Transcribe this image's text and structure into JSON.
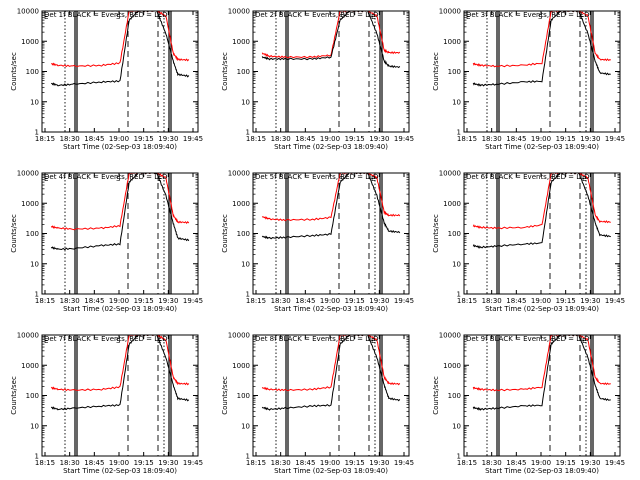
{
  "figure": {
    "xlabel": "Start Time (02-Sep-03 18:09:40)",
    "ylabel": "Counts/sec",
    "xticks": [
      "18:15",
      "18:30",
      "18:45",
      "19:00",
      "19:15",
      "19:30",
      "19:45"
    ],
    "yticks": [
      "1",
      "10",
      "100",
      "1000",
      "10000"
    ],
    "colors": {
      "events": "#000000",
      "lld": "#ff0000"
    }
  },
  "chart_data": [
    {
      "type": "line",
      "title": "Det 1f BLACK = Events, RED = LLD",
      "markers": [
        "E",
        "S",
        "E"
      ],
      "xlabel": "Start Time (02-Sep-03 18:09:40)",
      "ylabel": "Counts/sec",
      "xlim": [
        18.1,
        19.8
      ],
      "ylim": [
        1,
        10000
      ],
      "yscale": "log",
      "series": [
        {
          "name": "Events",
          "x": [
            18.2,
            18.28,
            18.45,
            18.75,
            18.95,
            19.05,
            19.15,
            19.35,
            19.45,
            19.53,
            19.58,
            19.7
          ],
          "y": [
            40,
            35,
            38,
            45,
            48,
            5000,
            10000,
            10000,
            1800,
            220,
            80,
            70
          ]
        },
        {
          "name": "LLD",
          "x": [
            18.2,
            18.28,
            18.45,
            18.75,
            18.95,
            19.05,
            19.15,
            19.35,
            19.45,
            19.53,
            19.58,
            19.7
          ],
          "y": [
            180,
            160,
            150,
            160,
            190,
            10000,
            10000,
            10000,
            7000,
            400,
            250,
            240
          ]
        }
      ]
    },
    {
      "type": "line",
      "title": "Det 2f BLACK = Events, RED = LLD",
      "markers": [
        "S",
        "E"
      ],
      "xlabel": "Start Time (02-Sep-03 18:09:40)",
      "ylabel": "Counts/sec",
      "xlim": [
        18.1,
        19.8
      ],
      "ylim": [
        1,
        10000
      ],
      "yscale": "log",
      "series": [
        {
          "name": "Events",
          "x": [
            18.2,
            18.28,
            18.45,
            18.75,
            18.95,
            19.05,
            19.15,
            19.35,
            19.45,
            19.53,
            19.58,
            19.7
          ],
          "y": [
            300,
            260,
            260,
            260,
            300,
            5000,
            10000,
            10000,
            1800,
            220,
            150,
            140
          ]
        },
        {
          "name": "LLD",
          "x": [
            18.2,
            18.28,
            18.45,
            18.75,
            18.95,
            19.05,
            19.15,
            19.35,
            19.45,
            19.53,
            19.58,
            19.7
          ],
          "y": [
            400,
            320,
            300,
            300,
            350,
            10000,
            10000,
            10000,
            7000,
            500,
            420,
            420
          ]
        }
      ]
    },
    {
      "type": "line",
      "title": "Det 3f BLACK = Events, RED = LLD",
      "markers": [
        "E",
        "S",
        "E"
      ],
      "xlabel": "Start Time (02-Sep-03 18:09:40)",
      "ylabel": "Counts/sec",
      "xlim": [
        18.1,
        19.8
      ],
      "ylim": [
        1,
        10000
      ],
      "yscale": "log",
      "series": [
        {
          "name": "Events",
          "x": [
            18.2,
            18.28,
            18.45,
            18.75,
            18.95,
            19.05,
            19.15,
            19.35,
            19.45,
            19.53,
            19.58,
            19.7
          ],
          "y": [
            40,
            35,
            38,
            45,
            48,
            5000,
            10000,
            10000,
            1800,
            220,
            90,
            80
          ]
        },
        {
          "name": "LLD",
          "x": [
            18.2,
            18.28,
            18.45,
            18.75,
            18.95,
            19.05,
            19.15,
            19.35,
            19.45,
            19.53,
            19.58,
            19.7
          ],
          "y": [
            180,
            160,
            150,
            160,
            190,
            10000,
            10000,
            10000,
            7000,
            400,
            250,
            240
          ]
        }
      ]
    },
    {
      "type": "line",
      "title": "Det 4f BLACK = Events, RED = LLD",
      "markers": [
        "E",
        "S",
        "E"
      ],
      "xlabel": "Start Time (02-Sep-03 18:09:40)",
      "ylabel": "Counts/sec",
      "xlim": [
        18.1,
        19.8
      ],
      "ylim": [
        1,
        10000
      ],
      "yscale": "log",
      "series": [
        {
          "name": "Events",
          "x": [
            18.2,
            18.28,
            18.45,
            18.75,
            18.95,
            19.05,
            19.15,
            19.35,
            19.45,
            19.53,
            19.58,
            19.7
          ],
          "y": [
            35,
            30,
            32,
            40,
            45,
            5000,
            10000,
            10000,
            1800,
            220,
            70,
            60
          ]
        },
        {
          "name": "LLD",
          "x": [
            18.2,
            18.28,
            18.45,
            18.75,
            18.95,
            19.05,
            19.15,
            19.35,
            19.45,
            19.53,
            19.58,
            19.7
          ],
          "y": [
            170,
            150,
            140,
            150,
            180,
            10000,
            10000,
            10000,
            7000,
            400,
            240,
            230
          ]
        }
      ]
    },
    {
      "type": "line",
      "title": "Det 5f BLACK = Events, RED = LLD",
      "markers": [
        "S",
        "E"
      ],
      "xlabel": "Start Time (02-Sep-03 18:09:40)",
      "ylabel": "Counts/sec",
      "xlim": [
        18.1,
        19.8
      ],
      "ylim": [
        1,
        10000
      ],
      "yscale": "log",
      "series": [
        {
          "name": "Events",
          "x": [
            18.2,
            18.28,
            18.45,
            18.75,
            18.95,
            19.05,
            19.15,
            19.35,
            19.45,
            19.53,
            19.58,
            19.7
          ],
          "y": [
            80,
            70,
            75,
            85,
            95,
            5000,
            10000,
            10000,
            1800,
            220,
            120,
            110
          ]
        },
        {
          "name": "LLD",
          "x": [
            18.2,
            18.28,
            18.45,
            18.75,
            18.95,
            19.05,
            19.15,
            19.35,
            19.45,
            19.53,
            19.58,
            19.7
          ],
          "y": [
            360,
            300,
            280,
            290,
            340,
            10000,
            10000,
            10000,
            7000,
            500,
            400,
            400
          ]
        }
      ]
    },
    {
      "type": "line",
      "title": "Det 6f BLACK = Events, RED = LLD",
      "markers": [
        "S",
        "E"
      ],
      "xlabel": "Start Time (02-Sep-03 18:09:40)",
      "ylabel": "Counts/sec",
      "xlim": [
        18.1,
        19.8
      ],
      "ylim": [
        1,
        10000
      ],
      "yscale": "log",
      "series": [
        {
          "name": "Events",
          "x": [
            18.2,
            18.28,
            18.45,
            18.75,
            18.95,
            19.05,
            19.15,
            19.35,
            19.45,
            19.53,
            19.58,
            19.7
          ],
          "y": [
            40,
            35,
            38,
            45,
            48,
            5000,
            10000,
            10000,
            1800,
            220,
            90,
            80
          ]
        },
        {
          "name": "LLD",
          "x": [
            18.2,
            18.28,
            18.45,
            18.75,
            18.95,
            19.05,
            19.15,
            19.35,
            19.45,
            19.53,
            19.58,
            19.7
          ],
          "y": [
            180,
            160,
            150,
            160,
            190,
            10000,
            10000,
            10000,
            7000,
            400,
            250,
            240
          ]
        }
      ]
    },
    {
      "type": "line",
      "title": "Det 7f BLACK = Events, RED = LLD",
      "markers": [
        "E",
        "S",
        "E"
      ],
      "xlabel": "Start Time (02-Sep-03 18:09:40)",
      "ylabel": "Counts/sec",
      "xlim": [
        18.1,
        19.8
      ],
      "ylim": [
        1,
        10000
      ],
      "yscale": "log",
      "series": [
        {
          "name": "Events",
          "x": [
            18.2,
            18.28,
            18.45,
            18.75,
            18.95,
            19.05,
            19.15,
            19.35,
            19.45,
            19.53,
            19.58,
            19.7
          ],
          "y": [
            40,
            35,
            38,
            45,
            48,
            5000,
            10000,
            10000,
            1800,
            220,
            80,
            70
          ]
        },
        {
          "name": "LLD",
          "x": [
            18.2,
            18.28,
            18.45,
            18.75,
            18.95,
            19.05,
            19.15,
            19.35,
            19.45,
            19.53,
            19.58,
            19.7
          ],
          "y": [
            180,
            160,
            150,
            160,
            190,
            10000,
            10000,
            10000,
            7000,
            400,
            250,
            240
          ]
        }
      ]
    },
    {
      "type": "line",
      "title": "Det 8f BLACK = Events, RED = LLD",
      "markers": [
        "S",
        "E"
      ],
      "xlabel": "Start Time (02-Sep-03 18:09:40)",
      "ylabel": "Counts/sec",
      "xlim": [
        18.1,
        19.8
      ],
      "ylim": [
        1,
        10000
      ],
      "yscale": "log",
      "series": [
        {
          "name": "Events",
          "x": [
            18.2,
            18.28,
            18.45,
            18.75,
            18.95,
            19.05,
            19.15,
            19.35,
            19.45,
            19.53,
            19.58,
            19.7
          ],
          "y": [
            40,
            35,
            38,
            45,
            48,
            5000,
            10000,
            10000,
            1800,
            220,
            80,
            70
          ]
        },
        {
          "name": "LLD",
          "x": [
            18.2,
            18.28,
            18.45,
            18.75,
            18.95,
            19.05,
            19.15,
            19.35,
            19.45,
            19.53,
            19.58,
            19.7
          ],
          "y": [
            180,
            160,
            150,
            160,
            190,
            10000,
            10000,
            10000,
            7000,
            400,
            250,
            240
          ]
        }
      ]
    },
    {
      "type": "line",
      "title": "Det 9f BLACK = Events, RED = LLD",
      "markers": [
        "S",
        "E"
      ],
      "xlabel": "Start Time (02-Sep-03 18:09:40)",
      "ylabel": "Counts/sec",
      "xlim": [
        18.1,
        19.8
      ],
      "ylim": [
        1,
        10000
      ],
      "yscale": "log",
      "series": [
        {
          "name": "Events",
          "x": [
            18.2,
            18.28,
            18.45,
            18.75,
            18.95,
            19.05,
            19.15,
            19.35,
            19.45,
            19.53,
            19.58,
            19.7
          ],
          "y": [
            40,
            35,
            38,
            45,
            48,
            5000,
            10000,
            10000,
            1800,
            220,
            80,
            70
          ]
        },
        {
          "name": "LLD",
          "x": [
            18.2,
            18.28,
            18.45,
            18.75,
            18.95,
            19.05,
            19.15,
            19.35,
            19.45,
            19.53,
            19.58,
            19.7
          ],
          "y": [
            180,
            160,
            150,
            160,
            190,
            10000,
            10000,
            10000,
            7000,
            400,
            250,
            240
          ]
        }
      ]
    }
  ]
}
